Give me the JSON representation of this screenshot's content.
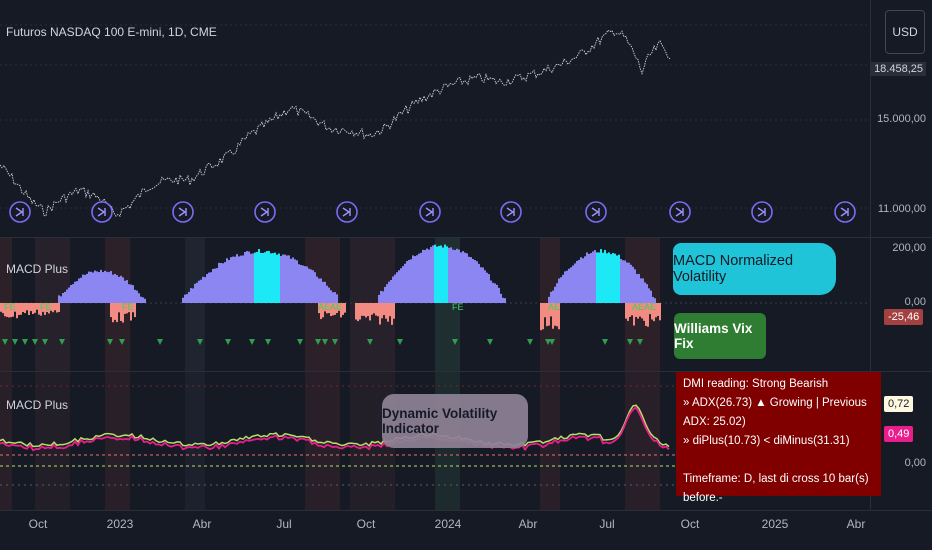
{
  "chart": {
    "title": "Futuros NASDAQ 100 E-mini, 1D, CME",
    "currency": "USD",
    "price_labels": [
      "18.458,25",
      "15.000,00",
      "11.000,00"
    ],
    "pane1_labels": [
      "200,00",
      "0,00"
    ],
    "pane1_tag": "-25,46",
    "pane2_tags": [
      "0,72",
      "0,49"
    ],
    "pane2_zero": "0,00"
  },
  "panes": {
    "pane1_name": "MACD Plus",
    "pane2_name": "MACD Plus"
  },
  "annotations": {
    "macd_norm": "MACD Normalized Volatility",
    "wvf": "Williams Vix Fix",
    "dvi": "Dynamic Volatility Indicator"
  },
  "dmi": {
    "lines": [
      "DMI reading: Strong Bearish",
      "» ADX(26.73) ▲ Growing | Previous ADX: 25.02)",
      "» diPlus(10.73) < diMinus(31.31)",
      "",
      "Timeframe: D, last di cross 10 bar(s) before.-"
    ]
  },
  "time_axis": {
    "labels": [
      "Oct",
      "2023",
      "Abr",
      "Jul",
      "Oct",
      "2024",
      "Abr",
      "Jul",
      "Oct",
      "2025",
      "Abr"
    ]
  },
  "colors": {
    "background": "#161a25",
    "price_line": "#d1d4dc",
    "hist_purple": "#8c86f2",
    "hist_cyan": "#1de9f6",
    "hist_salmon": "#f28b82",
    "dmi_red": "#800000",
    "magenta": "#e91e8c",
    "lime": "#b5e06b",
    "green_tri": "#2e9e4f",
    "bubble_cyan": "#1fc4d8",
    "bubble_green": "#2e7d32",
    "bubble_gray": "#8f8296"
  }
}
